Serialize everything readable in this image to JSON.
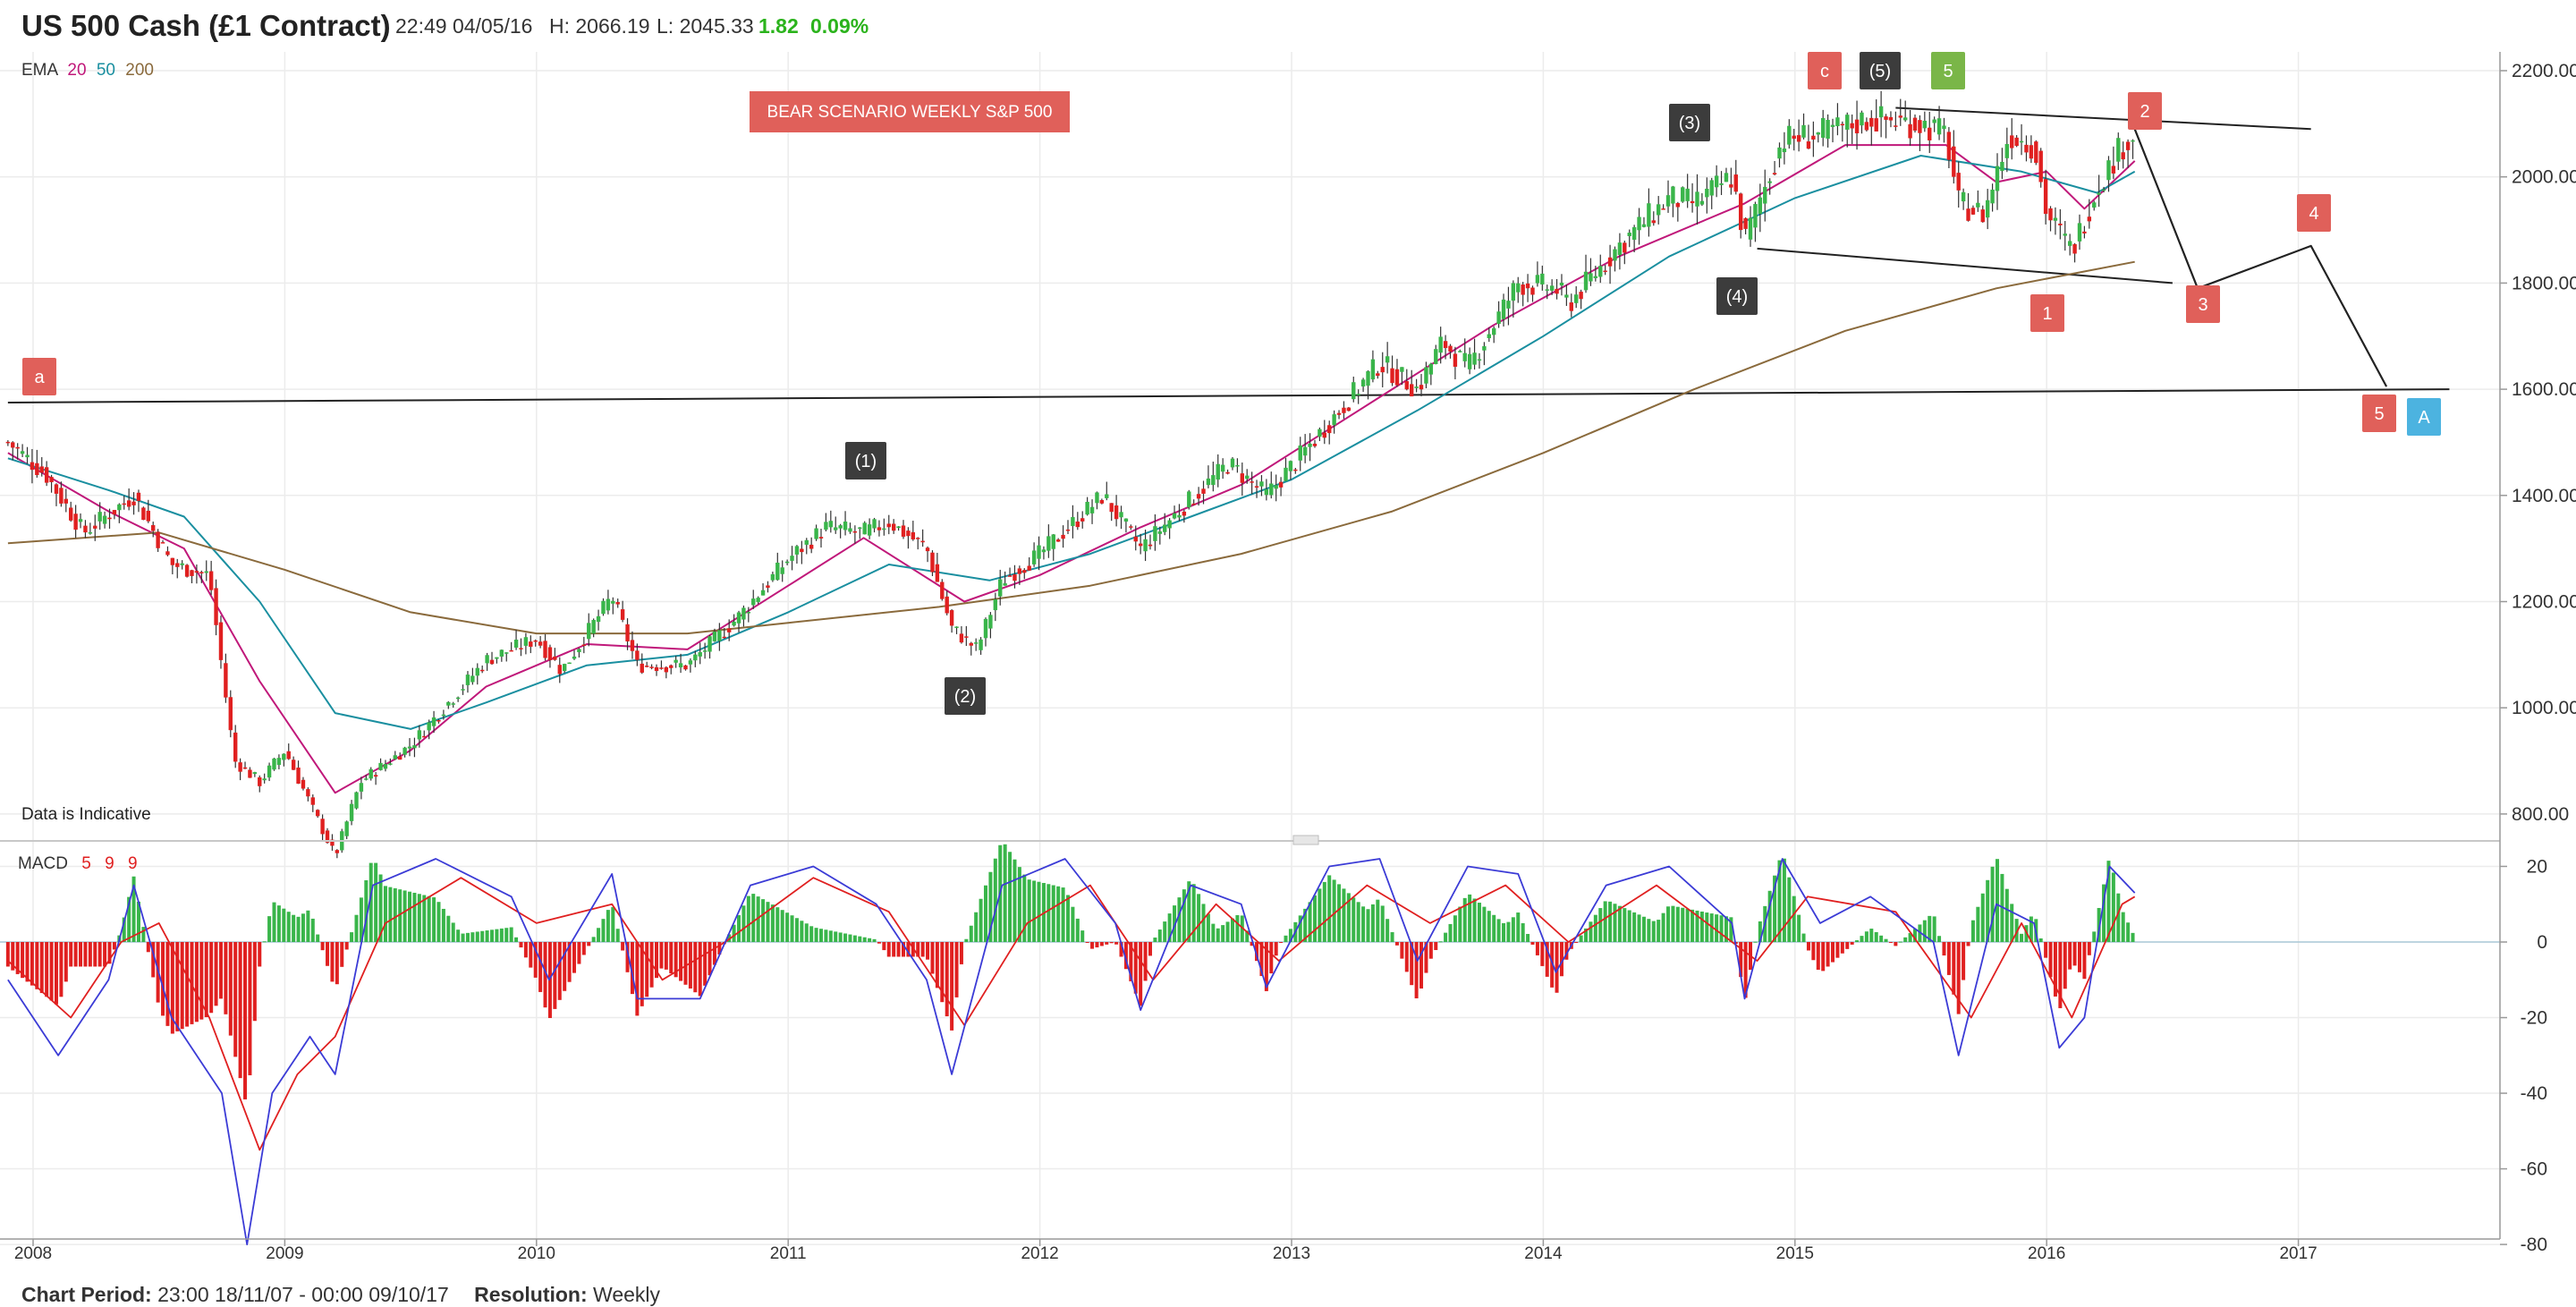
{
  "header": {
    "instrument": "US 500 Cash (£1 Contract)",
    "datetime": "22:49 04/05/16",
    "high": "H: 2066.19",
    "low": "L: 2045.33",
    "change": "1.82",
    "change_pct": "0.09%"
  },
  "price_panel": {
    "indicator_label": "EMA",
    "ema_periods": [
      "20",
      "50",
      "200"
    ],
    "ema_colors": [
      "#c0187a",
      "#1a8fa0",
      "#8a6a3c"
    ],
    "annotation_text": "BEAR SCENARIO  WEEKLY  S&P 500",
    "indicative_note": "Data is Indicative",
    "y_ticks": [
      "2200.00",
      "2000.00",
      "1800.00",
      "1600.00",
      "1400.00",
      "1200.00",
      "1000.00",
      "800.00"
    ]
  },
  "macd_panel": {
    "label": "MACD",
    "params": [
      "5",
      "9",
      "9"
    ],
    "y_ticks": [
      "20",
      "0",
      "-20",
      "-40",
      "-60",
      "-80"
    ]
  },
  "x_ticks": [
    "2008",
    "2009",
    "2010",
    "2011",
    "2012",
    "2013",
    "2014",
    "2015",
    "2016",
    "2017"
  ],
  "wave_labels": [
    {
      "text": "a",
      "style": "red"
    },
    {
      "text": "(1)",
      "style": "dark"
    },
    {
      "text": "(2)",
      "style": "dark"
    },
    {
      "text": "(3)",
      "style": "dark"
    },
    {
      "text": "(4)",
      "style": "dark"
    },
    {
      "text": "(5)",
      "style": "dark"
    },
    {
      "text": "c",
      "style": "red"
    },
    {
      "text": "5",
      "style": "green"
    },
    {
      "text": "1",
      "style": "red"
    },
    {
      "text": "2",
      "style": "red"
    },
    {
      "text": "3",
      "style": "red"
    },
    {
      "text": "4",
      "style": "red"
    },
    {
      "text": "5",
      "style": "red"
    },
    {
      "text": "A",
      "style": "blue"
    }
  ],
  "footer": {
    "period_label": "Chart Period:",
    "period_value": "23:00 18/11/07 - 00:00 09/10/17",
    "resolution_label": "Resolution:",
    "resolution_value": "Weekly"
  },
  "colors": {
    "up_candle": "#39b54a",
    "down_candle": "#e02020",
    "macd_line": "#3b3bd6",
    "signal_line": "#e02020",
    "label_red": "#e0605a",
    "label_dark": "#3c3c3c",
    "label_green": "#7ab648",
    "label_blue": "#4cb3e0"
  },
  "chart_data": {
    "type": "candlestick",
    "title": "US 500 Cash (£1 Contract)",
    "resolution": "Weekly",
    "price_ylim": [
      780,
      2220
    ],
    "macd_ylim": [
      -80,
      24
    ],
    "price_path": [
      {
        "x": 2007.9,
        "y": 1500
      },
      {
        "x": 2008.05,
        "y": 1440
      },
      {
        "x": 2008.2,
        "y": 1330
      },
      {
        "x": 2008.4,
        "y": 1400
      },
      {
        "x": 2008.55,
        "y": 1270
      },
      {
        "x": 2008.7,
        "y": 1250
      },
      {
        "x": 2008.8,
        "y": 900
      },
      {
        "x": 2008.9,
        "y": 860
      },
      {
        "x": 2009.0,
        "y": 920
      },
      {
        "x": 2009.1,
        "y": 820
      },
      {
        "x": 2009.2,
        "y": 720
      },
      {
        "x": 2009.3,
        "y": 860
      },
      {
        "x": 2009.5,
        "y": 930
      },
      {
        "x": 2009.8,
        "y": 1090
      },
      {
        "x": 2010.0,
        "y": 1130
      },
      {
        "x": 2010.1,
        "y": 1070
      },
      {
        "x": 2010.3,
        "y": 1210
      },
      {
        "x": 2010.4,
        "y": 1080
      },
      {
        "x": 2010.6,
        "y": 1080
      },
      {
        "x": 2010.8,
        "y": 1170
      },
      {
        "x": 2011.0,
        "y": 1280
      },
      {
        "x": 2011.15,
        "y": 1340
      },
      {
        "x": 2011.3,
        "y": 1330
      },
      {
        "x": 2011.4,
        "y": 1350
      },
      {
        "x": 2011.55,
        "y": 1300
      },
      {
        "x": 2011.65,
        "y": 1150
      },
      {
        "x": 2011.75,
        "y": 1110
      },
      {
        "x": 2011.85,
        "y": 1240
      },
      {
        "x": 2012.0,
        "y": 1290
      },
      {
        "x": 2012.25,
        "y": 1400
      },
      {
        "x": 2012.4,
        "y": 1300
      },
      {
        "x": 2012.55,
        "y": 1370
      },
      {
        "x": 2012.75,
        "y": 1460
      },
      {
        "x": 2012.9,
        "y": 1400
      },
      {
        "x": 2013.1,
        "y": 1510
      },
      {
        "x": 2013.35,
        "y": 1650
      },
      {
        "x": 2013.5,
        "y": 1600
      },
      {
        "x": 2013.6,
        "y": 1690
      },
      {
        "x": 2013.7,
        "y": 1640
      },
      {
        "x": 2013.9,
        "y": 1800
      },
      {
        "x": 2014.05,
        "y": 1790
      },
      {
        "x": 2014.1,
        "y": 1760
      },
      {
        "x": 2014.3,
        "y": 1870
      },
      {
        "x": 2014.5,
        "y": 1960
      },
      {
        "x": 2014.6,
        "y": 1950
      },
      {
        "x": 2014.75,
        "y": 2000
      },
      {
        "x": 2014.8,
        "y": 1880
      },
      {
        "x": 2014.95,
        "y": 2070
      },
      {
        "x": 2015.1,
        "y": 2080
      },
      {
        "x": 2015.3,
        "y": 2110
      },
      {
        "x": 2015.5,
        "y": 2100
      },
      {
        "x": 2015.6,
        "y": 2080
      },
      {
        "x": 2015.65,
        "y": 1950
      },
      {
        "x": 2015.75,
        "y": 1930
      },
      {
        "x": 2015.85,
        "y": 2080
      },
      {
        "x": 2015.95,
        "y": 2060
      },
      {
        "x": 2016.0,
        "y": 1930
      },
      {
        "x": 2016.1,
        "y": 1860
      },
      {
        "x": 2016.2,
        "y": 1980
      },
      {
        "x": 2016.3,
        "y": 2060
      },
      {
        "x": 2016.35,
        "y": 2080
      }
    ],
    "ema": [
      {
        "name": "20",
        "values": [
          {
            "x": 2007.9,
            "y": 1480
          },
          {
            "x": 2008.3,
            "y": 1370
          },
          {
            "x": 2008.6,
            "y": 1300
          },
          {
            "x": 2008.9,
            "y": 1050
          },
          {
            "x": 2009.2,
            "y": 840
          },
          {
            "x": 2009.5,
            "y": 920
          },
          {
            "x": 2009.8,
            "y": 1040
          },
          {
            "x": 2010.2,
            "y": 1120
          },
          {
            "x": 2010.6,
            "y": 1110
          },
          {
            "x": 2011.0,
            "y": 1230
          },
          {
            "x": 2011.3,
            "y": 1320
          },
          {
            "x": 2011.7,
            "y": 1200
          },
          {
            "x": 2012.0,
            "y": 1250
          },
          {
            "x": 2012.4,
            "y": 1340
          },
          {
            "x": 2012.8,
            "y": 1420
          },
          {
            "x": 2013.3,
            "y": 1570
          },
          {
            "x": 2013.8,
            "y": 1720
          },
          {
            "x": 2014.3,
            "y": 1850
          },
          {
            "x": 2014.8,
            "y": 1950
          },
          {
            "x": 2015.2,
            "y": 2060
          },
          {
            "x": 2015.6,
            "y": 2060
          },
          {
            "x": 2015.8,
            "y": 1990
          },
          {
            "x": 2016.0,
            "y": 2010
          },
          {
            "x": 2016.15,
            "y": 1940
          },
          {
            "x": 2016.35,
            "y": 2030
          }
        ]
      },
      {
        "name": "50",
        "values": [
          {
            "x": 2007.9,
            "y": 1470
          },
          {
            "x": 2008.3,
            "y": 1410
          },
          {
            "x": 2008.6,
            "y": 1360
          },
          {
            "x": 2008.9,
            "y": 1200
          },
          {
            "x": 2009.2,
            "y": 990
          },
          {
            "x": 2009.5,
            "y": 960
          },
          {
            "x": 2009.8,
            "y": 1010
          },
          {
            "x": 2010.2,
            "y": 1080
          },
          {
            "x": 2010.6,
            "y": 1100
          },
          {
            "x": 2011.0,
            "y": 1180
          },
          {
            "x": 2011.4,
            "y": 1270
          },
          {
            "x": 2011.8,
            "y": 1240
          },
          {
            "x": 2012.2,
            "y": 1290
          },
          {
            "x": 2012.6,
            "y": 1360
          },
          {
            "x": 2013.0,
            "y": 1430
          },
          {
            "x": 2013.5,
            "y": 1560
          },
          {
            "x": 2014.0,
            "y": 1700
          },
          {
            "x": 2014.5,
            "y": 1850
          },
          {
            "x": 2015.0,
            "y": 1960
          },
          {
            "x": 2015.5,
            "y": 2040
          },
          {
            "x": 2015.9,
            "y": 2010
          },
          {
            "x": 2016.2,
            "y": 1970
          },
          {
            "x": 2016.35,
            "y": 2010
          }
        ]
      },
      {
        "name": "200",
        "values": [
          {
            "x": 2007.9,
            "y": 1310
          },
          {
            "x": 2008.5,
            "y": 1330
          },
          {
            "x": 2009.0,
            "y": 1260
          },
          {
            "x": 2009.5,
            "y": 1180
          },
          {
            "x": 2010.0,
            "y": 1140
          },
          {
            "x": 2010.6,
            "y": 1140
          },
          {
            "x": 2011.0,
            "y": 1160
          },
          {
            "x": 2011.6,
            "y": 1190
          },
          {
            "x": 2012.2,
            "y": 1230
          },
          {
            "x": 2012.8,
            "y": 1290
          },
          {
            "x": 2013.4,
            "y": 1370
          },
          {
            "x": 2014.0,
            "y": 1480
          },
          {
            "x": 2014.6,
            "y": 1600
          },
          {
            "x": 2015.2,
            "y": 1710
          },
          {
            "x": 2015.8,
            "y": 1790
          },
          {
            "x": 2016.35,
            "y": 1840
          }
        ]
      }
    ],
    "trendlines": [
      {
        "name": "support",
        "x1": 2007.9,
        "y1": 1575,
        "x2": 2017.6,
        "y2": 1600
      },
      {
        "name": "channel-upper",
        "x1": 2015.4,
        "y1": 2130,
        "x2": 2017.05,
        "y2": 2090
      },
      {
        "name": "channel-lower",
        "x1": 2014.85,
        "y1": 1865,
        "x2": 2016.5,
        "y2": 1800
      }
    ],
    "projection_path": [
      {
        "x": 2016.35,
        "y": 2090
      },
      {
        "x": 2016.6,
        "y": 1790
      },
      {
        "x": 2017.05,
        "y": 1870
      },
      {
        "x": 2017.35,
        "y": 1605
      }
    ],
    "macd": {
      "macd_line": [
        {
          "x": 2007.9,
          "y": -10
        },
        {
          "x": 2008.1,
          "y": -30
        },
        {
          "x": 2008.3,
          "y": -10
        },
        {
          "x": 2008.4,
          "y": 15
        },
        {
          "x": 2008.55,
          "y": -20
        },
        {
          "x": 2008.75,
          "y": -40
        },
        {
          "x": 2008.85,
          "y": -80
        },
        {
          "x": 2008.95,
          "y": -40
        },
        {
          "x": 2009.1,
          "y": -25
        },
        {
          "x": 2009.2,
          "y": -35
        },
        {
          "x": 2009.35,
          "y": 15
        },
        {
          "x": 2009.6,
          "y": 22
        },
        {
          "x": 2009.9,
          "y": 12
        },
        {
          "x": 2010.05,
          "y": -10
        },
        {
          "x": 2010.3,
          "y": 18
        },
        {
          "x": 2010.4,
          "y": -15
        },
        {
          "x": 2010.65,
          "y": -15
        },
        {
          "x": 2010.85,
          "y": 15
        },
        {
          "x": 2011.1,
          "y": 20
        },
        {
          "x": 2011.35,
          "y": 10
        },
        {
          "x": 2011.55,
          "y": -10
        },
        {
          "x": 2011.65,
          "y": -35
        },
        {
          "x": 2011.85,
          "y": 15
        },
        {
          "x": 2012.1,
          "y": 22
        },
        {
          "x": 2012.3,
          "y": 5
        },
        {
          "x": 2012.4,
          "y": -18
        },
        {
          "x": 2012.6,
          "y": 15
        },
        {
          "x": 2012.8,
          "y": 10
        },
        {
          "x": 2012.9,
          "y": -12
        },
        {
          "x": 2013.15,
          "y": 20
        },
        {
          "x": 2013.35,
          "y": 22
        },
        {
          "x": 2013.5,
          "y": -5
        },
        {
          "x": 2013.7,
          "y": 20
        },
        {
          "x": 2013.9,
          "y": 18
        },
        {
          "x": 2014.05,
          "y": -8
        },
        {
          "x": 2014.25,
          "y": 15
        },
        {
          "x": 2014.5,
          "y": 20
        },
        {
          "x": 2014.75,
          "y": 5
        },
        {
          "x": 2014.8,
          "y": -15
        },
        {
          "x": 2014.95,
          "y": 22
        },
        {
          "x": 2015.1,
          "y": 5
        },
        {
          "x": 2015.3,
          "y": 12
        },
        {
          "x": 2015.55,
          "y": 0
        },
        {
          "x": 2015.65,
          "y": -30
        },
        {
          "x": 2015.8,
          "y": 10
        },
        {
          "x": 2015.95,
          "y": 5
        },
        {
          "x": 2016.05,
          "y": -28
        },
        {
          "x": 2016.15,
          "y": -20
        },
        {
          "x": 2016.25,
          "y": 20
        },
        {
          "x": 2016.35,
          "y": 13
        }
      ],
      "signal_line": [
        {
          "x": 2007.9,
          "y": -5
        },
        {
          "x": 2008.15,
          "y": -20
        },
        {
          "x": 2008.35,
          "y": 0
        },
        {
          "x": 2008.5,
          "y": 5
        },
        {
          "x": 2008.7,
          "y": -20
        },
        {
          "x": 2008.9,
          "y": -55
        },
        {
          "x": 2009.05,
          "y": -35
        },
        {
          "x": 2009.2,
          "y": -25
        },
        {
          "x": 2009.4,
          "y": 5
        },
        {
          "x": 2009.7,
          "y": 17
        },
        {
          "x": 2010.0,
          "y": 5
        },
        {
          "x": 2010.3,
          "y": 10
        },
        {
          "x": 2010.5,
          "y": -10
        },
        {
          "x": 2010.75,
          "y": 0
        },
        {
          "x": 2011.1,
          "y": 17
        },
        {
          "x": 2011.4,
          "y": 8
        },
        {
          "x": 2011.7,
          "y": -22
        },
        {
          "x": 2011.95,
          "y": 5
        },
        {
          "x": 2012.2,
          "y": 15
        },
        {
          "x": 2012.45,
          "y": -10
        },
        {
          "x": 2012.7,
          "y": 10
        },
        {
          "x": 2012.95,
          "y": -5
        },
        {
          "x": 2013.3,
          "y": 15
        },
        {
          "x": 2013.55,
          "y": 5
        },
        {
          "x": 2013.85,
          "y": 15
        },
        {
          "x": 2014.1,
          "y": 0
        },
        {
          "x": 2014.45,
          "y": 15
        },
        {
          "x": 2014.85,
          "y": -5
        },
        {
          "x": 2015.05,
          "y": 12
        },
        {
          "x": 2015.4,
          "y": 8
        },
        {
          "x": 2015.7,
          "y": -20
        },
        {
          "x": 2015.9,
          "y": 5
        },
        {
          "x": 2016.1,
          "y": -20
        },
        {
          "x": 2016.3,
          "y": 10
        },
        {
          "x": 2016.35,
          "y": 12
        }
      ]
    }
  }
}
